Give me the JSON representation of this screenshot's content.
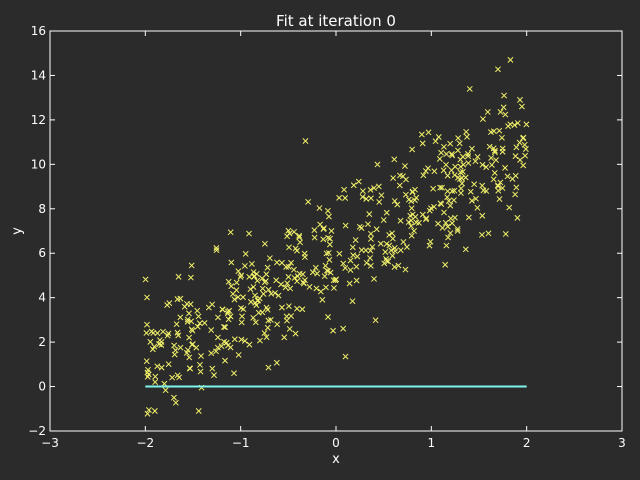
{
  "chart_data": {
    "type": "scatter",
    "title": "Fit at iteration 0",
    "xlabel": "x",
    "ylabel": "y",
    "xlim": [
      -3,
      3
    ],
    "ylim": [
      -2,
      16
    ],
    "xticks": [
      -3,
      -2,
      -1,
      0,
      1,
      2,
      3
    ],
    "yticks": [
      -2,
      0,
      2,
      4,
      6,
      8,
      10,
      12,
      14,
      16
    ],
    "xtick_labels": [
      "−3",
      "−2",
      "−1",
      "0",
      "1",
      "2",
      "3"
    ],
    "ytick_labels": [
      "−2",
      "0",
      "2",
      "4",
      "6",
      "8",
      "10",
      "12",
      "14",
      "16"
    ],
    "grid": false,
    "colors": {
      "background": "#2b2b2b",
      "axes": "#ffffff",
      "points": "#f2f26a",
      "fit_line": "#7ff5f0"
    },
    "scatter": {
      "marker": "x",
      "trend": {
        "slope": 2.5,
        "intercept": 6.0,
        "noise_sd": 1.4,
        "count": 500,
        "x_range": [
          -2,
          2
        ]
      },
      "notable_points": [
        {
          "x": 1.83,
          "y": 14.7
        },
        {
          "x": -0.32,
          "y": 11.05
        },
        {
          "x": 0.1,
          "y": 1.35
        },
        {
          "x": -1.44,
          "y": -1.1
        },
        {
          "x": -1.9,
          "y": -1.1
        },
        {
          "x": -1.41,
          "y": -0.05
        },
        {
          "x": -1.07,
          "y": 0.6
        },
        {
          "x": 1.93,
          "y": 12.9
        },
        {
          "x": 1.95,
          "y": 12.6
        }
      ]
    },
    "fit_line": {
      "x": [
        -2,
        2
      ],
      "y": [
        0,
        0
      ]
    }
  }
}
